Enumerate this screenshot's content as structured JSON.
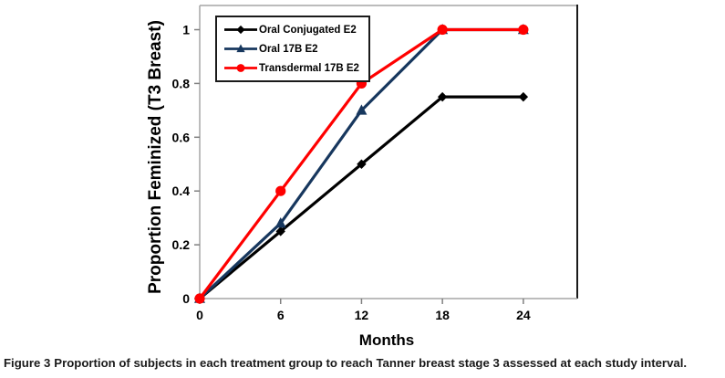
{
  "figure": {
    "caption_label": "Figure 3",
    "caption_text": "Proportion of subjects in each treatment group to reach Tanner breast stage 3 assessed at each study interval."
  },
  "chart_data": {
    "type": "line",
    "x": [
      0,
      6,
      12,
      18,
      24
    ],
    "series": [
      {
        "name": "Oral Conjugated E2",
        "marker": "diamond",
        "color": "#000000",
        "values": [
          0,
          0.25,
          0.5,
          0.75,
          0.75
        ]
      },
      {
        "name": "Oral 17B E2",
        "marker": "triangle",
        "color": "#17375E",
        "values": [
          0,
          0.28,
          0.7,
          1.0,
          1.0
        ]
      },
      {
        "name": "Transdermal 17B E2",
        "marker": "circle",
        "color": "#FF0000",
        "values": [
          0,
          0.4,
          0.8,
          1.0,
          1.0
        ]
      }
    ],
    "xlabel": "Months",
    "ylabel": "Proportion Feminized (T3 Breast)",
    "xticks": [
      0,
      6,
      12,
      18,
      24
    ],
    "yticks": [
      0,
      0.2,
      0.4,
      0.6,
      0.8,
      1
    ],
    "xlim": [
      0,
      28
    ],
    "ylim": [
      0,
      1.09
    ],
    "grid": false,
    "legend_position": "top-left-inside",
    "colors": {
      "frame": "#A6A6A6",
      "frame_right": "#1A1A1A",
      "tick": "#808080",
      "text": "#000000",
      "background": "#FFFFFF"
    }
  }
}
